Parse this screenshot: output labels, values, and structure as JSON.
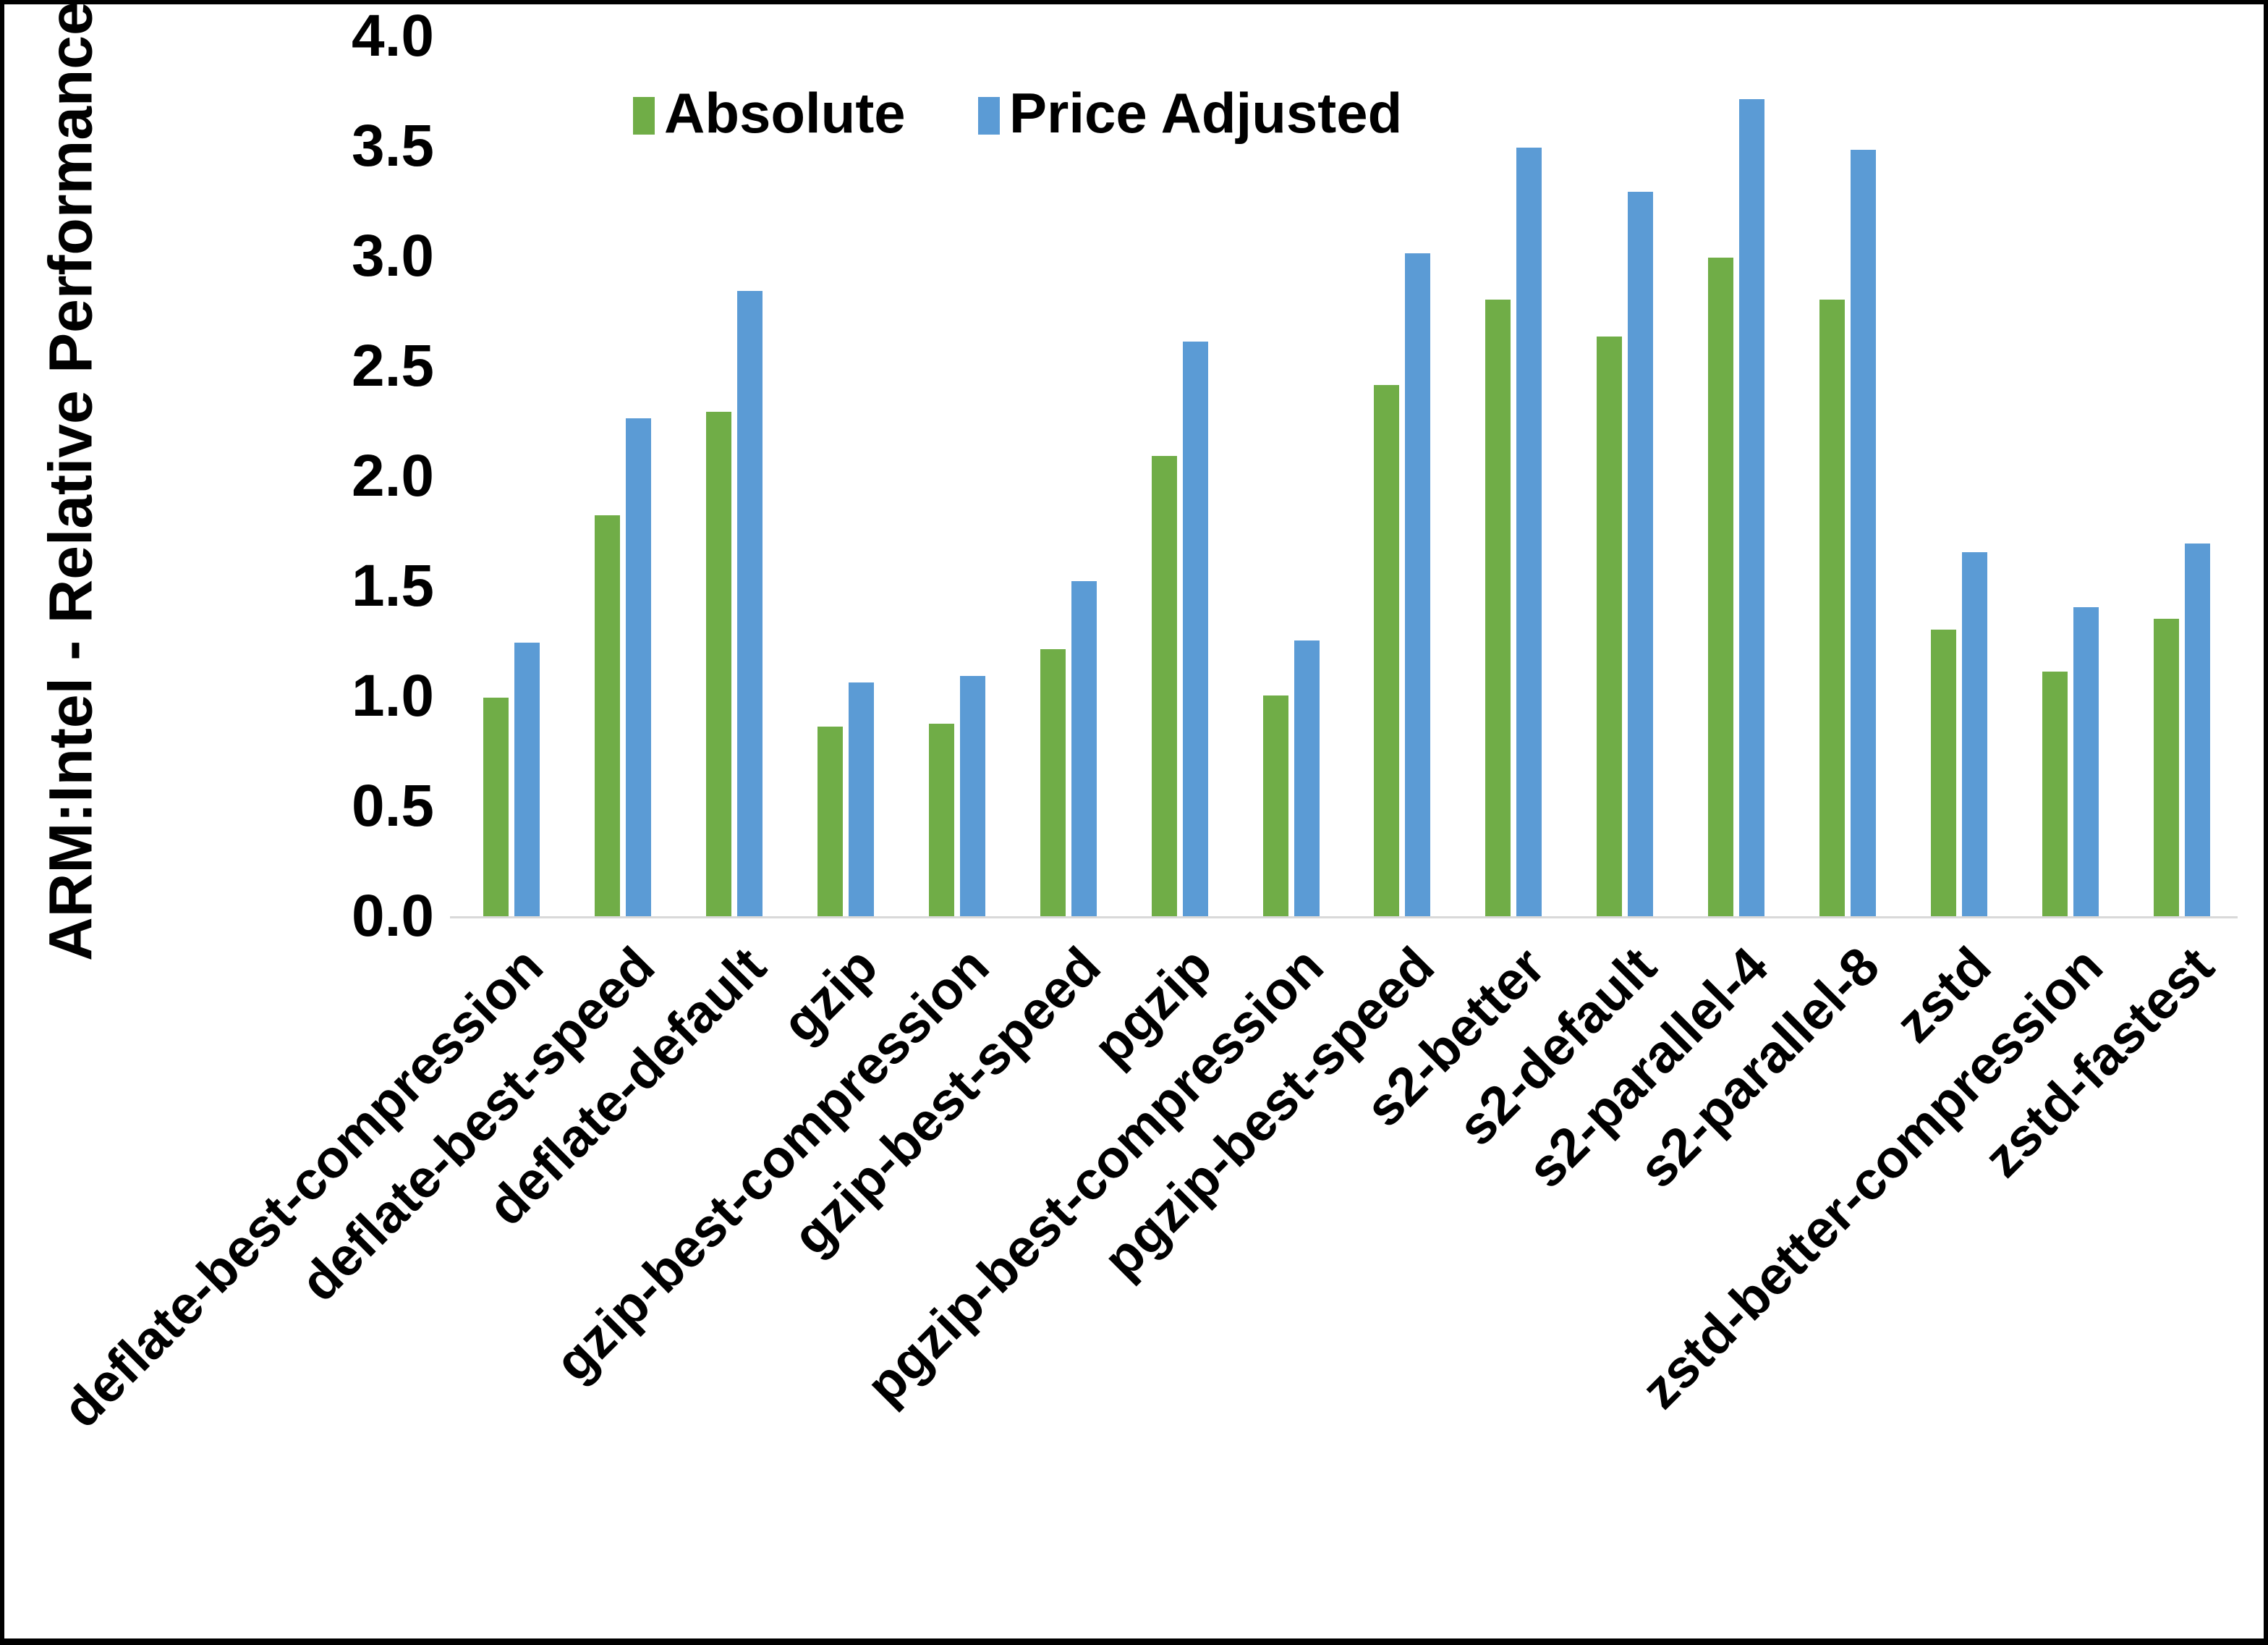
{
  "chart_data": {
    "type": "bar",
    "title": "",
    "xlabel": "",
    "ylabel": "ARM:Intel - Relative Performance",
    "ylim": [
      0.0,
      4.0
    ],
    "ytick_step": 0.5,
    "ytick_labels": [
      "0.0",
      "0.5",
      "1.0",
      "1.5",
      "2.0",
      "2.5",
      "3.0",
      "3.5",
      "4.0"
    ],
    "grid": false,
    "legend_position": "top-center",
    "axis_line_color": "#d9d9d9",
    "categories": [
      "deflate-best-compression",
      "deflate-best-speed",
      "deflate-default",
      "gzip",
      "gzip-best-compression",
      "gzip-best-speed",
      "pgzip",
      "pgzip-best-compression",
      "pgzip-best-speed",
      "s2-better",
      "s2-default",
      "s2-parallel-4",
      "s2-parallel-8",
      "zstd",
      "zstd-better-compression",
      "zstd-fastest"
    ],
    "series": [
      {
        "name": "Absolute",
        "color": "#70AD47",
        "values": [
          1.0,
          1.83,
          2.3,
          0.87,
          0.88,
          1.22,
          2.1,
          1.01,
          2.42,
          2.81,
          2.64,
          3.0,
          2.81,
          1.31,
          1.12,
          1.36
        ]
      },
      {
        "name": "Price Adjusted",
        "color": "#5B9BD5",
        "values": [
          1.25,
          2.27,
          2.85,
          1.07,
          1.1,
          1.53,
          2.62,
          1.26,
          3.02,
          3.5,
          3.3,
          3.72,
          3.49,
          1.66,
          1.41,
          1.7
        ]
      }
    ]
  }
}
